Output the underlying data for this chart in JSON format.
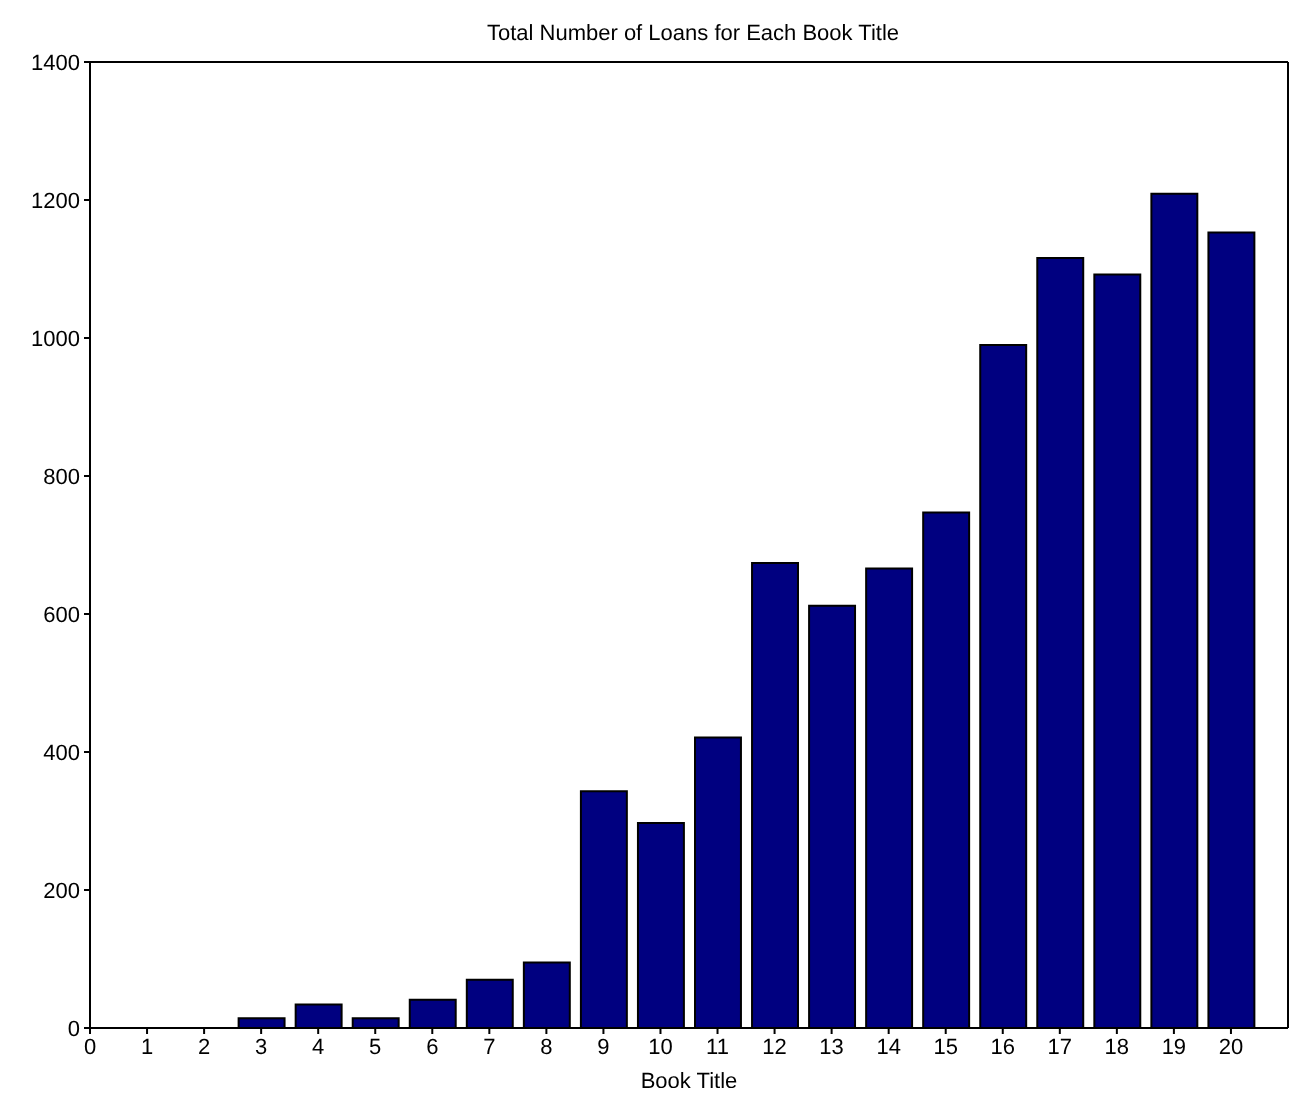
{
  "chart_data": {
    "type": "bar",
    "title": "Total Number of Loans for Each Book Title",
    "xlabel": "Book Title",
    "x": [
      1,
      2,
      3,
      4,
      5,
      6,
      7,
      8,
      9,
      10,
      11,
      12,
      13,
      14,
      15,
      16,
      17,
      18,
      19,
      20
    ],
    "values": [
      0,
      0,
      14,
      34,
      14,
      41,
      70,
      95,
      343,
      297,
      421,
      674,
      612,
      666,
      747,
      990,
      1116,
      1092,
      1209,
      1153
    ],
    "color": "#000080",
    "xlim": [
      0,
      21
    ],
    "xticks": [
      0,
      1,
      2,
      3,
      4,
      5,
      6,
      7,
      8,
      9,
      10,
      11,
      12,
      13,
      14,
      15,
      16,
      17,
      18,
      19,
      20
    ],
    "ylim": [
      0,
      1400
    ],
    "yticks": [
      0,
      200,
      400,
      600,
      800,
      1000,
      1200,
      1400
    ],
    "grid": false,
    "legend": false
  }
}
